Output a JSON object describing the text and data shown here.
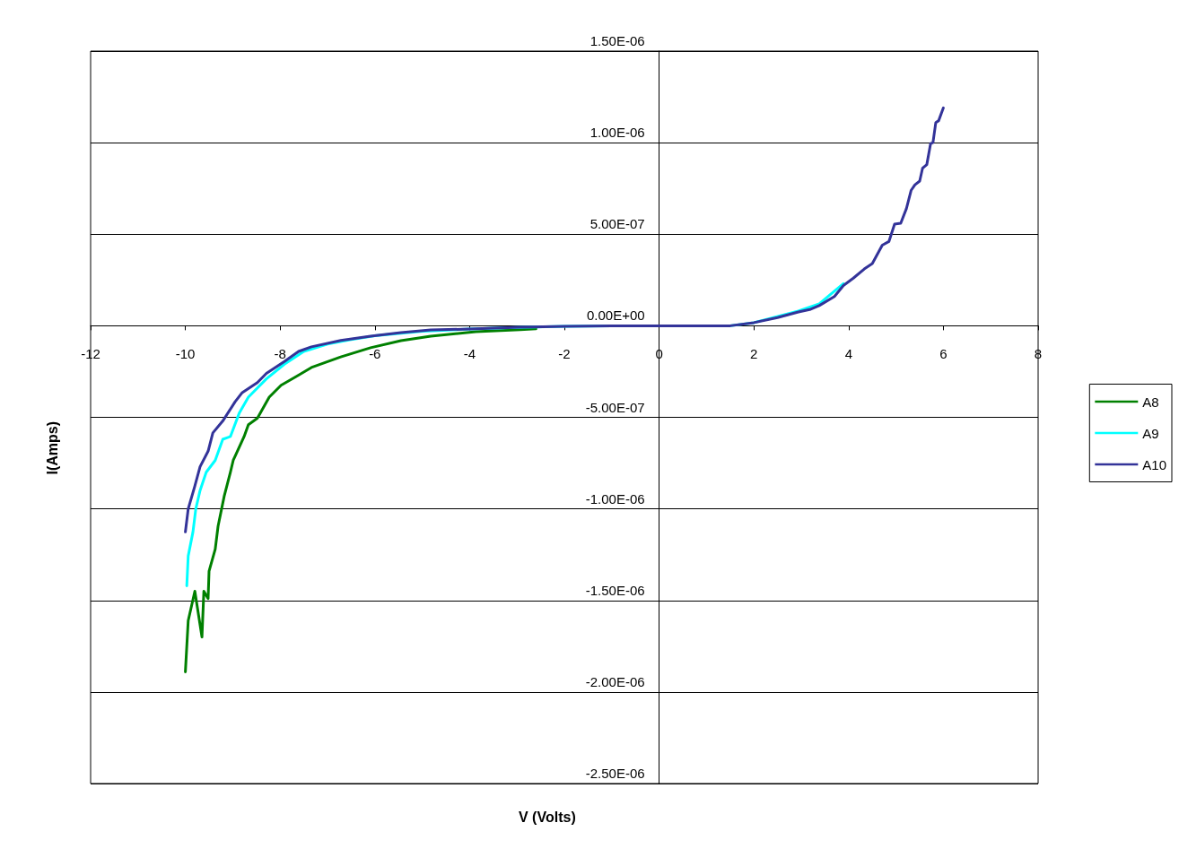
{
  "chart_data": {
    "type": "line",
    "xlabel": "V (Volts)",
    "ylabel": "I(Amps)",
    "xlim": [
      -12,
      8
    ],
    "xticks": [
      -12,
      -10,
      -8,
      -6,
      -4,
      -2,
      0,
      2,
      4,
      6,
      8
    ],
    "ylim": [
      -2.5e-06,
      1.5e-06
    ],
    "yticks": [
      {
        "value": -2.5e-06,
        "label": "-2.50E-06"
      },
      {
        "value": -2e-06,
        "label": "-2.00E-06"
      },
      {
        "value": -1.5e-06,
        "label": "-1.50E-06"
      },
      {
        "value": -1e-06,
        "label": "-1.00E-06"
      },
      {
        "value": -5e-07,
        "label": "-5.00E-07"
      },
      {
        "value": 0,
        "label": "0.00E+00"
      },
      {
        "value": 5e-07,
        "label": "5.00E-07"
      },
      {
        "value": 1e-06,
        "label": "1.00E-06"
      },
      {
        "value": 1.5e-06,
        "label": "1.50E-06"
      }
    ],
    "grid": "y",
    "legend": "right",
    "marker": "none",
    "line_style": "solid",
    "series": [
      {
        "name": "A8",
        "color": "#008000",
        "x": [
          -10.0,
          -9.94,
          -9.8,
          -9.65,
          -9.61,
          -9.52,
          -9.5,
          -9.37,
          -9.31,
          -9.18,
          -9.05,
          -8.99,
          -8.76,
          -8.67,
          -8.48,
          -8.23,
          -7.98,
          -7.66,
          -7.34,
          -6.72,
          -6.09,
          -5.45,
          -4.82,
          -3.87,
          -2.93,
          -2.6
        ],
        "values": [
          -1.89e-06,
          -1.61e-06,
          -1.45e-06,
          -1.7e-06,
          -1.45e-06,
          -1.49e-06,
          -1.34e-06,
          -1.22e-06,
          -1.095e-06,
          -9.3e-07,
          -8e-07,
          -7.35e-07,
          -6.05e-07,
          -5.4e-07,
          -5.05e-07,
          -3.9e-07,
          -3.25e-07,
          -2.77e-07,
          -2.28e-07,
          -1.7e-07,
          -1.2e-07,
          -8.1e-08,
          -5.7e-08,
          -3.2e-08,
          -2.2e-08,
          -1.7e-08
        ]
      },
      {
        "name": "A9",
        "color": "#00ffff",
        "x": [
          -9.97,
          -9.94,
          -9.84,
          -9.78,
          -9.69,
          -9.56,
          -9.37,
          -9.21,
          -9.05,
          -8.86,
          -8.67,
          -8.29,
          -7.91,
          -7.5,
          -7.0,
          -6.5,
          -6.0,
          -5.0,
          -4.0,
          -3.0,
          -2.0,
          -1,
          0,
          1.5,
          2,
          2.94,
          3.38,
          3.89
        ],
        "values": [
          -1.42e-06,
          -1.257e-06,
          -1.126e-06,
          -1e-06,
          -9e-07,
          -8e-07,
          -7.35e-07,
          -6.2e-07,
          -6.05e-07,
          -4.75e-07,
          -3.9e-07,
          -2.9e-07,
          -2.1e-07,
          -1.4e-07,
          -1e-07,
          -7.5e-08,
          -5.5e-08,
          -3e-08,
          -1.8e-08,
          -9e-09,
          -3e-09,
          -1e-09,
          0,
          0,
          1.7e-08,
          8e-08,
          1.2e-07,
          2.3e-07
        ]
      },
      {
        "name": "A10",
        "color": "#333399",
        "x": [
          -10.0,
          -9.94,
          -9.8,
          -9.69,
          -9.52,
          -9.42,
          -9.21,
          -8.95,
          -8.8,
          -8.48,
          -8.29,
          -7.91,
          -7.61,
          -7.34,
          -6.72,
          -6.09,
          -5.45,
          -4.82,
          -3.87,
          -2.93,
          -1.98,
          -1,
          0,
          1.5,
          2,
          2.5,
          2.94,
          3.2,
          3.38,
          3.7,
          3.89,
          4.1,
          4.33,
          4.5,
          4.71,
          4.85,
          4.97,
          5.1,
          5.22,
          5.32,
          5.4,
          5.5,
          5.56,
          5.65,
          5.73,
          5.78,
          5.84,
          5.9,
          6.0
        ],
        "values": [
          -1.126e-06,
          -1e-06,
          -8.75e-07,
          -7.7e-07,
          -6.85e-07,
          -5.85e-07,
          -5.2e-07,
          -4.15e-07,
          -3.65e-07,
          -3.1e-07,
          -2.6e-07,
          -1.95e-07,
          -1.4e-07,
          -1.15e-07,
          -8e-08,
          -5.7e-08,
          -3.7e-08,
          -2.3e-08,
          -1.7e-08,
          -8e-09,
          -3e-09,
          -1e-09,
          0,
          0,
          1.7e-08,
          4.5e-08,
          7.5e-08,
          9e-08,
          1.1e-07,
          1.6e-07,
          2.2e-07,
          2.6e-07,
          3.1e-07,
          3.4e-07,
          4.4e-07,
          4.6e-07,
          5.55e-07,
          5.6e-07,
          6.4e-07,
          7.4e-07,
          7.7e-07,
          7.9e-07,
          8.6e-07,
          8.8e-07,
          9.95e-07,
          1e-06,
          1.11e-06,
          1.12e-06,
          1.19e-06
        ]
      }
    ]
  }
}
